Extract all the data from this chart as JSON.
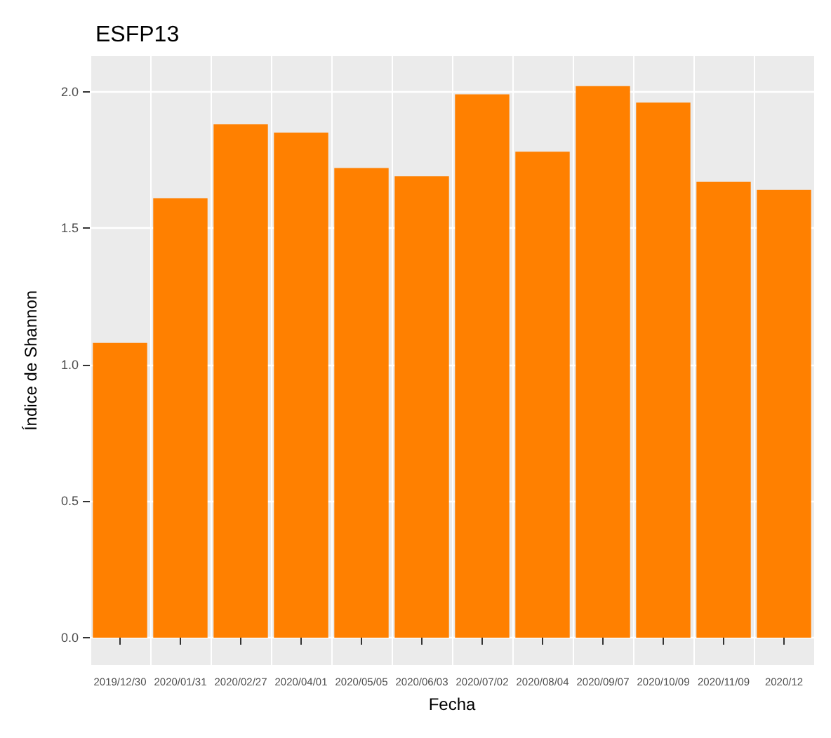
{
  "chart_data": {
    "type": "bar",
    "title": "ESFP13",
    "xlabel": "Fecha",
    "ylabel": "Índice de Shannon",
    "categories": [
      "2019/12/30",
      "2020/01/31",
      "2020/02/27",
      "2020/04/01",
      "2020/05/05",
      "2020/06/03",
      "2020/07/02",
      "2020/08/04",
      "2020/09/07",
      "2020/10/09",
      "2020/11/09",
      "2020/12"
    ],
    "values": [
      1.08,
      1.61,
      1.88,
      1.85,
      1.72,
      1.69,
      1.99,
      1.78,
      2.02,
      1.96,
      1.67,
      1.64
    ],
    "color": "#ff8000",
    "ylim": [
      -0.1,
      2.13
    ],
    "yticks": [
      {
        "value": 0,
        "label": "0.0"
      },
      {
        "value": 0.5,
        "label": "0.5"
      },
      {
        "value": 1,
        "label": "1.0"
      },
      {
        "value": 1.5,
        "label": "1.5"
      },
      {
        "value": 2,
        "label": "2.0"
      }
    ],
    "grid": true
  }
}
